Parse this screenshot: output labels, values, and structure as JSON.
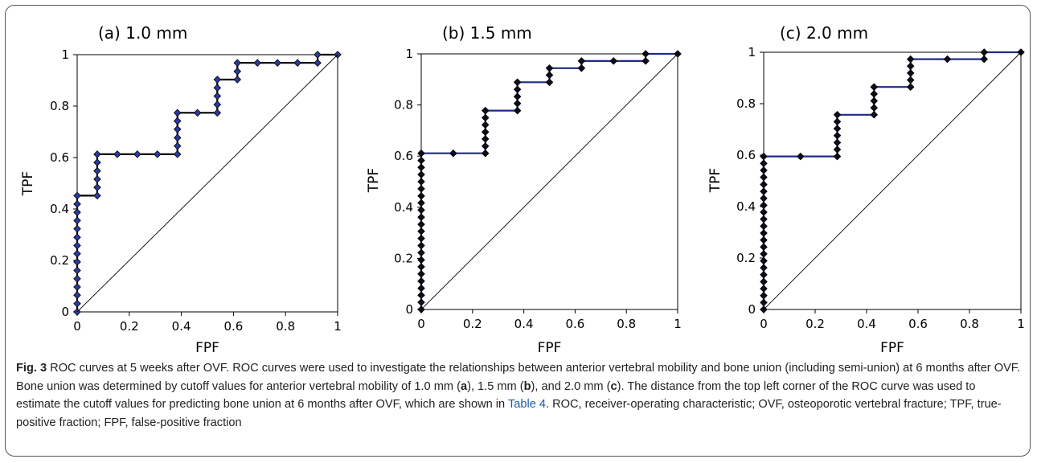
{
  "chart_data": [
    {
      "type": "line",
      "title": "(a) 1.0 mm",
      "xlabel": "FPF",
      "ylabel": "TPF",
      "xlim": [
        0,
        1
      ],
      "ylim": [
        0,
        1
      ],
      "xticks": [
        "0",
        "0.2",
        "0.4",
        "0.6",
        "0.8",
        "1"
      ],
      "yticks": [
        "0",
        "0.2",
        "0.4",
        "0.6",
        "0.8",
        "1"
      ],
      "grid": false,
      "legend": "none",
      "series": [
        {
          "color": "#000000",
          "marker_color": "#2b3aa0",
          "points": [
            [
              0,
              0
            ],
            [
              0,
              0.032
            ],
            [
              0,
              0.065
            ],
            [
              0,
              0.097
            ],
            [
              0,
              0.129
            ],
            [
              0,
              0.161
            ],
            [
              0,
              0.194
            ],
            [
              0,
              0.226
            ],
            [
              0,
              0.258
            ],
            [
              0,
              0.29
            ],
            [
              0,
              0.323
            ],
            [
              0,
              0.355
            ],
            [
              0,
              0.387
            ],
            [
              0,
              0.419
            ],
            [
              0,
              0.452
            ],
            [
              0.077,
              0.452
            ],
            [
              0.077,
              0.484
            ],
            [
              0.077,
              0.516
            ],
            [
              0.077,
              0.548
            ],
            [
              0.077,
              0.581
            ],
            [
              0.077,
              0.613
            ],
            [
              0.154,
              0.613
            ],
            [
              0.231,
              0.613
            ],
            [
              0.308,
              0.613
            ],
            [
              0.385,
              0.613
            ],
            [
              0.385,
              0.645
            ],
            [
              0.385,
              0.677
            ],
            [
              0.385,
              0.71
            ],
            [
              0.385,
              0.742
            ],
            [
              0.385,
              0.774
            ],
            [
              0.462,
              0.774
            ],
            [
              0.538,
              0.774
            ],
            [
              0.538,
              0.806
            ],
            [
              0.538,
              0.839
            ],
            [
              0.538,
              0.871
            ],
            [
              0.538,
              0.903
            ],
            [
              0.615,
              0.903
            ],
            [
              0.615,
              0.935
            ],
            [
              0.615,
              0.968
            ],
            [
              0.692,
              0.968
            ],
            [
              0.769,
              0.968
            ],
            [
              0.846,
              0.968
            ],
            [
              0.923,
              0.968
            ],
            [
              0.923,
              1.0
            ],
            [
              1.0,
              1.0
            ]
          ]
        },
        {
          "color": "#000000",
          "points": [
            [
              0,
              0
            ],
            [
              1,
              1
            ]
          ]
        }
      ]
    },
    {
      "type": "line",
      "title": "(b) 1.5 mm",
      "xlabel": "FPF",
      "ylabel": "TPF",
      "xlim": [
        0,
        1
      ],
      "ylim": [
        0,
        1
      ],
      "xticks": [
        "0",
        "0.2",
        "0.4",
        "0.6",
        "0.8",
        "1"
      ],
      "yticks": [
        "0",
        "0.2",
        "0.4",
        "0.6",
        "0.8",
        "1"
      ],
      "grid": false,
      "legend": "none",
      "series": [
        {
          "color": "#1f2a8a",
          "marker_color": "#0d0d1a",
          "points": [
            [
              0,
              0
            ],
            [
              0,
              0.028
            ],
            [
              0,
              0.056
            ],
            [
              0,
              0.083
            ],
            [
              0,
              0.111
            ],
            [
              0,
              0.139
            ],
            [
              0,
              0.167
            ],
            [
              0,
              0.194
            ],
            [
              0,
              0.222
            ],
            [
              0,
              0.25
            ],
            [
              0,
              0.278
            ],
            [
              0,
              0.306
            ],
            [
              0,
              0.333
            ],
            [
              0,
              0.361
            ],
            [
              0,
              0.389
            ],
            [
              0,
              0.417
            ],
            [
              0,
              0.444
            ],
            [
              0,
              0.472
            ],
            [
              0,
              0.5
            ],
            [
              0,
              0.528
            ],
            [
              0,
              0.556
            ],
            [
              0,
              0.583
            ],
            [
              0,
              0.611
            ],
            [
              0.125,
              0.611
            ],
            [
              0.25,
              0.611
            ],
            [
              0.25,
              0.639
            ],
            [
              0.25,
              0.667
            ],
            [
              0.25,
              0.694
            ],
            [
              0.25,
              0.722
            ],
            [
              0.25,
              0.75
            ],
            [
              0.25,
              0.778
            ],
            [
              0.375,
              0.778
            ],
            [
              0.375,
              0.806
            ],
            [
              0.375,
              0.833
            ],
            [
              0.375,
              0.861
            ],
            [
              0.375,
              0.889
            ],
            [
              0.5,
              0.889
            ],
            [
              0.5,
              0.917
            ],
            [
              0.5,
              0.944
            ],
            [
              0.625,
              0.944
            ],
            [
              0.625,
              0.972
            ],
            [
              0.75,
              0.972
            ],
            [
              0.875,
              0.972
            ],
            [
              0.875,
              1.0
            ],
            [
              1.0,
              1.0
            ]
          ]
        },
        {
          "color": "#000000",
          "points": [
            [
              0,
              0
            ],
            [
              1,
              1
            ]
          ]
        }
      ]
    },
    {
      "type": "line",
      "title": "(c) 2.0 mm",
      "xlabel": "FPF",
      "ylabel": "TPF",
      "xlim": [
        0,
        1
      ],
      "ylim": [
        0,
        1
      ],
      "xticks": [
        "0",
        "0.2",
        "0.4",
        "0.6",
        "0.8",
        "1"
      ],
      "yticks": [
        "0",
        "0.2",
        "0.4",
        "0.6",
        "0.8",
        "1"
      ],
      "grid": false,
      "legend": "none",
      "series": [
        {
          "color": "#1f2a8a",
          "marker_color": "#0d0d1a",
          "points": [
            [
              0,
              0
            ],
            [
              0,
              0.027
            ],
            [
              0,
              0.054
            ],
            [
              0,
              0.081
            ],
            [
              0,
              0.108
            ],
            [
              0,
              0.135
            ],
            [
              0,
              0.162
            ],
            [
              0,
              0.189
            ],
            [
              0,
              0.216
            ],
            [
              0,
              0.243
            ],
            [
              0,
              0.27
            ],
            [
              0,
              0.297
            ],
            [
              0,
              0.324
            ],
            [
              0,
              0.351
            ],
            [
              0,
              0.378
            ],
            [
              0,
              0.405
            ],
            [
              0,
              0.432
            ],
            [
              0,
              0.459
            ],
            [
              0,
              0.486
            ],
            [
              0,
              0.514
            ],
            [
              0,
              0.541
            ],
            [
              0,
              0.568
            ],
            [
              0,
              0.595
            ],
            [
              0.143,
              0.595
            ],
            [
              0.286,
              0.595
            ],
            [
              0.286,
              0.622
            ],
            [
              0.286,
              0.649
            ],
            [
              0.286,
              0.676
            ],
            [
              0.286,
              0.703
            ],
            [
              0.286,
              0.73
            ],
            [
              0.286,
              0.757
            ],
            [
              0.429,
              0.757
            ],
            [
              0.429,
              0.784
            ],
            [
              0.429,
              0.811
            ],
            [
              0.429,
              0.838
            ],
            [
              0.429,
              0.865
            ],
            [
              0.571,
              0.865
            ],
            [
              0.571,
              0.892
            ],
            [
              0.571,
              0.919
            ],
            [
              0.571,
              0.946
            ],
            [
              0.571,
              0.973
            ],
            [
              0.714,
              0.973
            ],
            [
              0.857,
              0.973
            ],
            [
              0.857,
              1.0
            ],
            [
              1.0,
              1.0
            ]
          ]
        },
        {
          "color": "#000000",
          "points": [
            [
              0,
              0
            ],
            [
              1,
              1
            ]
          ]
        }
      ]
    }
  ],
  "caption": {
    "label": "Fig. 3",
    "text1": " ROC curves at 5 weeks after OVF. ROC curves were used to investigate the relationships between anterior vertebral mobility and bone union (including semi-union) at 6 months after OVF. Bone union was determined by cutoff values for anterior vertebral mobility of 1.0 mm (",
    "ref_a": "a",
    "text2": "), 1.5 mm (",
    "ref_b": "b",
    "text3": "), and 2.0 mm (",
    "ref_c": "c",
    "text4": "). The distance from the top left corner of the ROC curve was used to estimate the cutoff values for predicting bone union at 6 months after OVF, which are shown in ",
    "table_link": "Table 4",
    "text5": ". ROC, receiver-operating characteristic; OVF, osteoporotic vertebral fracture; TPF, true-positive fraction; FPF, false-positive fraction"
  }
}
